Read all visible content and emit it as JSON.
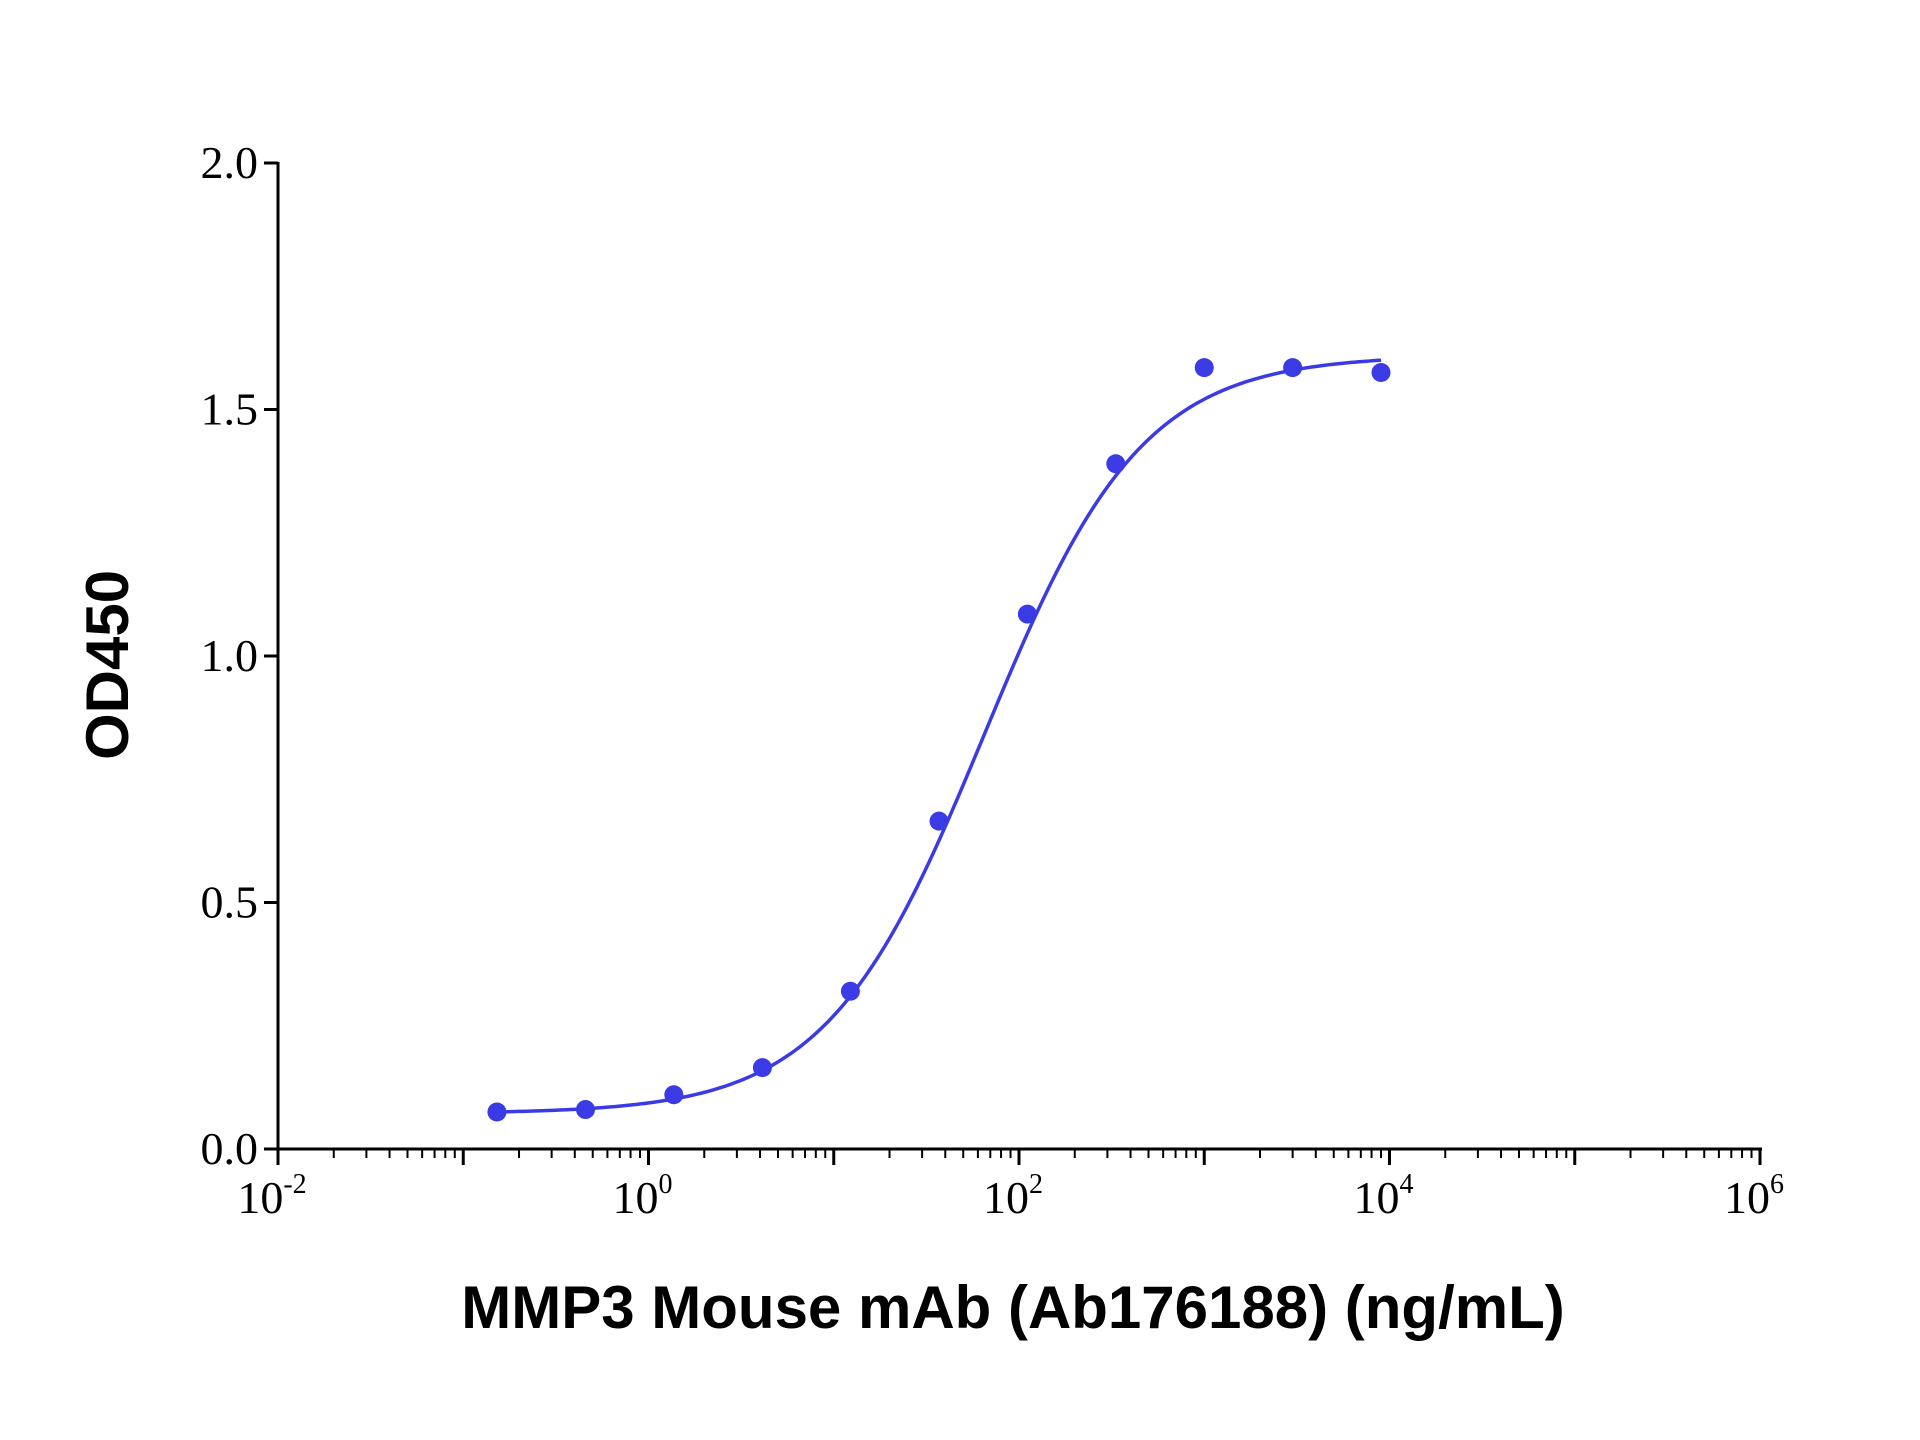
{
  "chart_data": {
    "type": "scatter",
    "xlabel": "MMP3 Mouse mAb (Ab176188) (ng/mL)",
    "ylabel": "OD450",
    "x_scale": "log",
    "xlim": [
      0.01,
      1000000
    ],
    "ylim": [
      0,
      2.0
    ],
    "y_ticks": [
      "0.0",
      "0.5",
      "1.0",
      "1.5",
      "2.0"
    ],
    "x_ticks": [
      {
        "base": "10",
        "exp": "-2"
      },
      {
        "base": "10",
        "exp": "0"
      },
      {
        "base": "10",
        "exp": "2"
      },
      {
        "base": "10",
        "exp": "4"
      },
      {
        "base": "10",
        "exp": "6"
      }
    ],
    "grid": false,
    "color": "#3b3be6",
    "series": [
      {
        "x": [
          0.152,
          0.457,
          1.37,
          4.12,
          12.3,
          37.0,
          111,
          333,
          1000,
          3000,
          9000
        ],
        "y": [
          0.075,
          0.08,
          0.11,
          0.165,
          0.32,
          0.665,
          1.085,
          1.39,
          1.585,
          1.585,
          1.575
        ]
      }
    ],
    "fit": {
      "type": "4PL",
      "bottom": 0.072,
      "top": 1.61,
      "ec50": 65,
      "hill": 1.02,
      "x_range": [
        0.152,
        9000
      ]
    }
  }
}
